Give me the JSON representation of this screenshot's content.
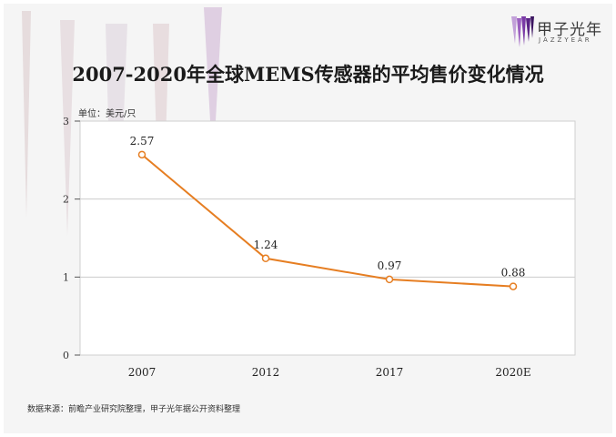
{
  "logo": {
    "cn": "甲子光年",
    "en": "JAZZYEAR"
  },
  "chart_data": {
    "type": "line",
    "title": "2007-2020年全球MEMS传感器的平均售价变化情况",
    "unit_label": "单位：美元/只",
    "categories": [
      "2007",
      "2012",
      "2017",
      "2020E"
    ],
    "series": [
      {
        "name": "平均售价",
        "values": [
          2.57,
          1.24,
          0.97,
          0.88
        ],
        "labels": [
          "2.57",
          "1.24",
          "0.97",
          "0.88"
        ]
      }
    ],
    "y_ticks": [
      "0",
      "1",
      "2",
      "3"
    ],
    "ylim": [
      0,
      3
    ],
    "grid": true,
    "xlabel": "",
    "ylabel": "",
    "source": "数据来源：前瞻产业研究院整理，甲子光年据公开资料整理"
  },
  "colors": {
    "line": "#e67e22",
    "marker_fill": "#ffffff",
    "background": "#f5f5f5",
    "plot_background": "#ffffff",
    "decoration": "#c9b6d6"
  }
}
